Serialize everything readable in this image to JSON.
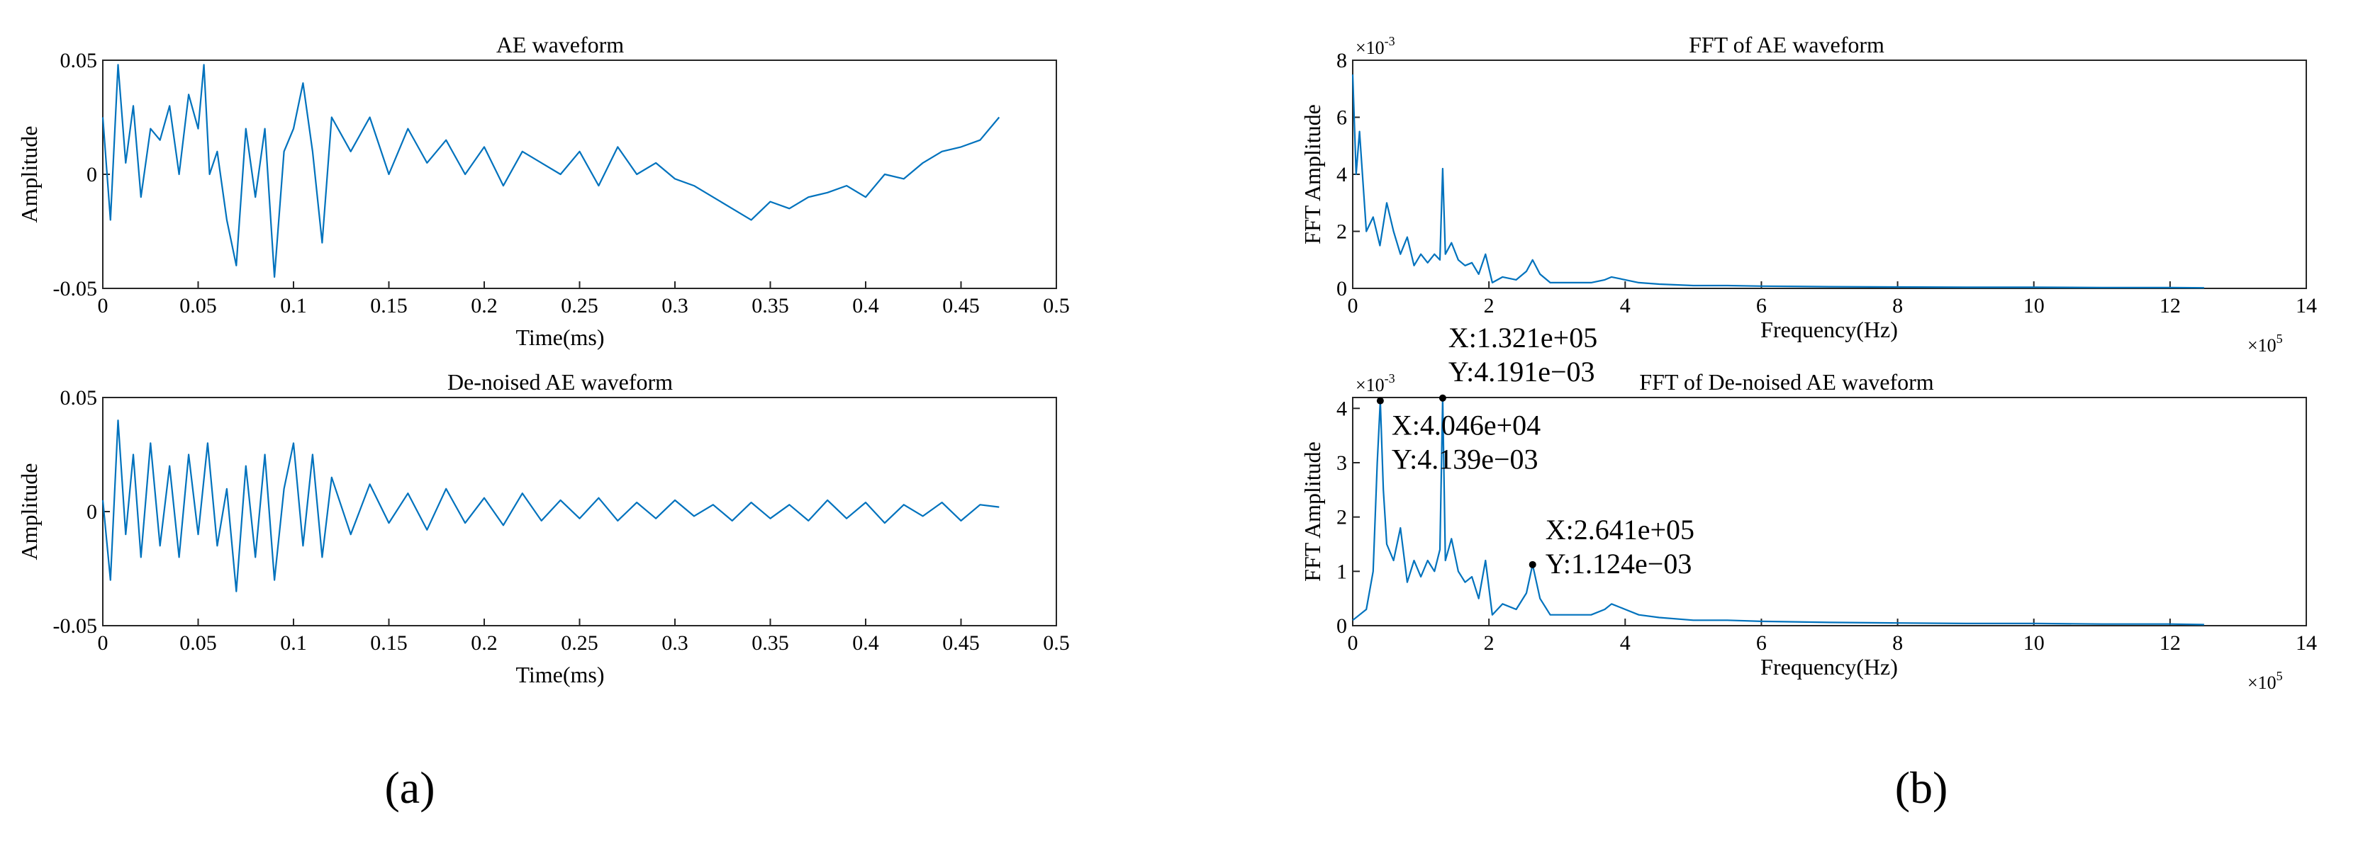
{
  "panel_labels": {
    "a": "(a)",
    "b": "(b)"
  },
  "chart_data": [
    {
      "id": "ae",
      "type": "line",
      "title": "AE waveform",
      "xlabel": "Time(ms)",
      "ylabel": "Amplitude",
      "xlim": [
        0,
        0.5
      ],
      "ylim": [
        -0.05,
        0.05
      ],
      "xticks": [
        0,
        0.05,
        0.1,
        0.15,
        0.2,
        0.25,
        0.3,
        0.35,
        0.4,
        0.45,
        0.5
      ],
      "xtick_labels": [
        "0",
        "0.05",
        "0.1",
        "0.15",
        "0.2",
        "0.25",
        "0.3",
        "0.35",
        "0.4",
        "0.45",
        "0.5"
      ],
      "yticks": [
        -0.05,
        0,
        0.05
      ],
      "ytick_labels": [
        "-0.05",
        "0",
        "0.05"
      ],
      "color": "#0072BD",
      "series": [
        {
          "name": "AE waveform",
          "x": [
            0,
            0.004,
            0.008,
            0.012,
            0.016,
            0.02,
            0.025,
            0.03,
            0.035,
            0.04,
            0.045,
            0.05,
            0.053,
            0.056,
            0.06,
            0.065,
            0.07,
            0.075,
            0.08,
            0.085,
            0.09,
            0.095,
            0.1,
            0.105,
            0.11,
            0.115,
            0.12,
            0.13,
            0.14,
            0.15,
            0.16,
            0.17,
            0.18,
            0.19,
            0.2,
            0.21,
            0.22,
            0.23,
            0.24,
            0.25,
            0.26,
            0.27,
            0.28,
            0.29,
            0.3,
            0.31,
            0.32,
            0.33,
            0.34,
            0.35,
            0.36,
            0.37,
            0.38,
            0.39,
            0.4,
            0.41,
            0.42,
            0.43,
            0.44,
            0.45,
            0.46,
            0.47
          ],
          "y": [
            0.025,
            -0.02,
            0.048,
            0.005,
            0.03,
            -0.01,
            0.02,
            0.015,
            0.03,
            0.0,
            0.035,
            0.02,
            0.048,
            0.0,
            0.01,
            -0.02,
            -0.04,
            0.02,
            -0.01,
            0.02,
            -0.045,
            0.01,
            0.02,
            0.04,
            0.01,
            -0.03,
            0.025,
            0.01,
            0.025,
            0.0,
            0.02,
            0.005,
            0.015,
            0.0,
            0.012,
            -0.005,
            0.01,
            0.005,
            0.0,
            0.01,
            -0.005,
            0.012,
            0.0,
            0.005,
            -0.002,
            -0.005,
            -0.01,
            -0.015,
            -0.02,
            -0.012,
            -0.015,
            -0.01,
            -0.008,
            -0.005,
            -0.01,
            0.0,
            -0.002,
            0.005,
            0.01,
            0.012,
            0.015,
            0.025
          ]
        }
      ]
    },
    {
      "id": "ae_denoised",
      "type": "line",
      "title": "De-noised AE waveform",
      "xlabel": "Time(ms)",
      "ylabel": "Amplitude",
      "xlim": [
        0,
        0.5
      ],
      "ylim": [
        -0.05,
        0.05
      ],
      "xticks": [
        0,
        0.05,
        0.1,
        0.15,
        0.2,
        0.25,
        0.3,
        0.35,
        0.4,
        0.45,
        0.5
      ],
      "xtick_labels": [
        "0",
        "0.05",
        "0.1",
        "0.15",
        "0.2",
        "0.25",
        "0.3",
        "0.35",
        "0.4",
        "0.45",
        "0.5"
      ],
      "yticks": [
        -0.05,
        0,
        0.05
      ],
      "ytick_labels": [
        "-0.05",
        "0",
        "0.05"
      ],
      "color": "#0072BD",
      "series": [
        {
          "name": "De-noised AE waveform",
          "x": [
            0,
            0.004,
            0.008,
            0.012,
            0.016,
            0.02,
            0.025,
            0.03,
            0.035,
            0.04,
            0.045,
            0.05,
            0.055,
            0.06,
            0.065,
            0.07,
            0.075,
            0.08,
            0.085,
            0.09,
            0.095,
            0.1,
            0.105,
            0.11,
            0.115,
            0.12,
            0.13,
            0.14,
            0.15,
            0.16,
            0.17,
            0.18,
            0.19,
            0.2,
            0.21,
            0.22,
            0.23,
            0.24,
            0.25,
            0.26,
            0.27,
            0.28,
            0.29,
            0.3,
            0.31,
            0.32,
            0.33,
            0.34,
            0.35,
            0.36,
            0.37,
            0.38,
            0.39,
            0.4,
            0.41,
            0.42,
            0.43,
            0.44,
            0.45,
            0.46,
            0.47
          ],
          "y": [
            0.005,
            -0.03,
            0.04,
            -0.01,
            0.025,
            -0.02,
            0.03,
            -0.015,
            0.02,
            -0.02,
            0.025,
            -0.01,
            0.03,
            -0.015,
            0.01,
            -0.035,
            0.02,
            -0.02,
            0.025,
            -0.03,
            0.01,
            0.03,
            -0.015,
            0.025,
            -0.02,
            0.015,
            -0.01,
            0.012,
            -0.005,
            0.008,
            -0.008,
            0.01,
            -0.005,
            0.006,
            -0.006,
            0.008,
            -0.004,
            0.005,
            -0.003,
            0.006,
            -0.004,
            0.004,
            -0.003,
            0.005,
            -0.002,
            0.003,
            -0.004,
            0.004,
            -0.003,
            0.003,
            -0.004,
            0.005,
            -0.003,
            0.004,
            -0.005,
            0.003,
            -0.002,
            0.004,
            -0.004,
            0.003,
            0.002
          ]
        }
      ]
    },
    {
      "id": "fft",
      "type": "line",
      "title": "FFT of AE waveform",
      "xlabel": "Frequency(Hz)",
      "ylabel": "FFT Amplitude",
      "xlim": [
        0,
        1400000
      ],
      "ylim": [
        0,
        0.008
      ],
      "xticks": [
        0,
        200000,
        400000,
        600000,
        800000,
        1000000,
        1200000,
        1400000
      ],
      "xtick_labels": [
        "0",
        "2",
        "4",
        "6",
        "8",
        "10",
        "12",
        "14"
      ],
      "yticks": [
        0,
        0.002,
        0.004,
        0.006,
        0.008
      ],
      "ytick_labels": [
        "0",
        "2",
        "4",
        "6",
        "8"
      ],
      "x_multiplier": "×10",
      "x_multiplier_exp": "5",
      "y_multiplier": "×10",
      "y_multiplier_exp": "-3",
      "color": "#0072BD",
      "series": [
        {
          "name": "FFT of AE waveform",
          "x": [
            0,
            5000,
            10000,
            20000,
            30000,
            40000,
            50000,
            60000,
            70000,
            80000,
            90000,
            100000,
            110000,
            120000,
            128000,
            132100,
            136000,
            145000,
            155000,
            165000,
            175000,
            185000,
            195000,
            205000,
            220000,
            240000,
            255000,
            264100,
            275000,
            290000,
            310000,
            330000,
            350000,
            370000,
            380000,
            400000,
            420000,
            450000,
            500000,
            550000,
            600000,
            700000,
            800000,
            900000,
            1000000,
            1100000,
            1200000,
            1250000
          ],
          "y": [
            0.0075,
            0.004,
            0.0055,
            0.002,
            0.0025,
            0.0015,
            0.003,
            0.002,
            0.0012,
            0.0018,
            0.0008,
            0.0012,
            0.0009,
            0.0012,
            0.001,
            0.0042,
            0.0012,
            0.0016,
            0.001,
            0.0008,
            0.0009,
            0.0005,
            0.0012,
            0.0002,
            0.0004,
            0.0003,
            0.0006,
            0.001,
            0.0005,
            0.0002,
            0.0002,
            0.0002,
            0.0002,
            0.0003,
            0.0004,
            0.0003,
            0.0002,
            0.00015,
            0.0001,
            0.0001,
            8e-05,
            6e-05,
            5e-05,
            4e-05,
            4e-05,
            3e-05,
            3e-05,
            2e-05
          ]
        }
      ]
    },
    {
      "id": "fft_denoised",
      "type": "line",
      "title": "FFT of De-noised AE waveform",
      "xlabel": "Frequency(Hz)",
      "ylabel": "FFT Amplitude",
      "xlim": [
        0,
        1400000
      ],
      "ylim": [
        0,
        0.0042
      ],
      "xticks": [
        0,
        200000,
        400000,
        600000,
        800000,
        1000000,
        1200000,
        1400000
      ],
      "xtick_labels": [
        "0",
        "2",
        "4",
        "6",
        "8",
        "10",
        "12",
        "14"
      ],
      "yticks": [
        0,
        0.001,
        0.002,
        0.003,
        0.004
      ],
      "ytick_labels": [
        "0",
        "1",
        "2",
        "3",
        "4"
      ],
      "x_multiplier": "×10",
      "x_multiplier_exp": "5",
      "y_multiplier": "×10",
      "y_multiplier_exp": "-3",
      "color": "#0072BD",
      "series": [
        {
          "name": "FFT of De-noised AE waveform",
          "x": [
            0,
            10000,
            20000,
            30000,
            36000,
            40460,
            45000,
            50000,
            60000,
            70000,
            80000,
            90000,
            100000,
            110000,
            120000,
            128000,
            132100,
            136000,
            145000,
            155000,
            165000,
            175000,
            185000,
            195000,
            205000,
            220000,
            240000,
            255000,
            264100,
            275000,
            290000,
            310000,
            330000,
            350000,
            370000,
            380000,
            400000,
            420000,
            450000,
            500000,
            550000,
            600000,
            700000,
            800000,
            900000,
            1000000,
            1100000,
            1200000,
            1250000
          ],
          "y": [
            0.0001,
            0.0002,
            0.0003,
            0.001,
            0.003,
            0.00414,
            0.0025,
            0.0015,
            0.0012,
            0.0018,
            0.0008,
            0.0012,
            0.0009,
            0.0012,
            0.001,
            0.0014,
            0.00419,
            0.0012,
            0.0016,
            0.001,
            0.0008,
            0.0009,
            0.0005,
            0.0012,
            0.0002,
            0.0004,
            0.0003,
            0.0006,
            0.001124,
            0.0005,
            0.0002,
            0.0002,
            0.0002,
            0.0002,
            0.0003,
            0.0004,
            0.0003,
            0.0002,
            0.00015,
            0.0001,
            0.0001,
            8e-05,
            6e-05,
            5e-05,
            4e-05,
            4e-05,
            3e-05,
            3e-05,
            2e-05
          ]
        }
      ],
      "annotations": [
        {
          "x": 132100,
          "y": 0.00419,
          "label_x": "X:1.321e+05",
          "label_y": "Y:4.191e−03"
        },
        {
          "x": 40460,
          "y": 0.00414,
          "label_x": "X:4.046e+04",
          "label_y": "Y:4.139e−03"
        },
        {
          "x": 264100,
          "y": 0.001124,
          "label_x": "X:2.641e+05",
          "label_y": "Y:1.124e−03"
        }
      ]
    }
  ]
}
